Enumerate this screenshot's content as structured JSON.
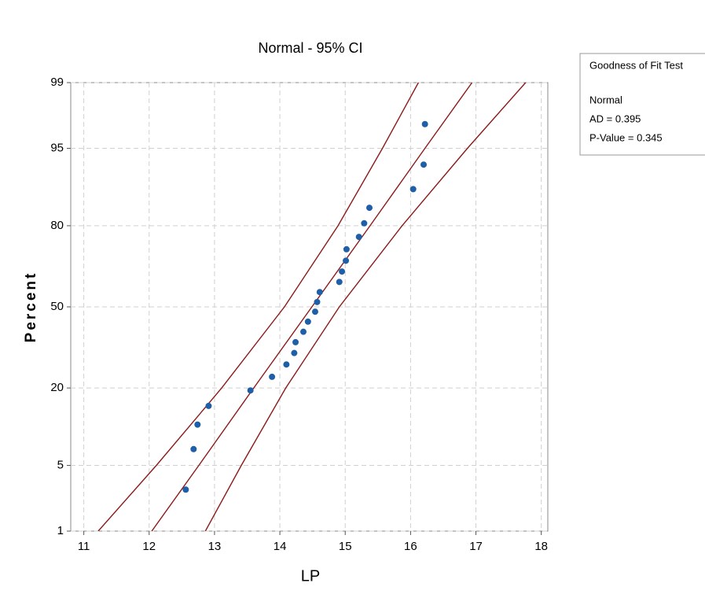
{
  "chart_data": {
    "type": "probability",
    "title": "Normal - 95% CI",
    "xlabel": "LP",
    "ylabel": "Percent",
    "yscale": "probability",
    "x": [
      12.56,
      12.68,
      12.74,
      12.91,
      13.55,
      13.88,
      14.1,
      14.22,
      14.24,
      14.36,
      14.43,
      14.54,
      14.57,
      14.61,
      14.91,
      14.95,
      15.01,
      15.02,
      15.21,
      15.29,
      15.37,
      16.04,
      16.2,
      16.22
    ],
    "values": [
      2.9,
      7.0,
      11.1,
      15.2,
      19.3,
      23.4,
      27.5,
      31.6,
      35.7,
      39.8,
      43.9,
      48.0,
      52.0,
      56.1,
      60.2,
      64.3,
      68.4,
      72.5,
      76.6,
      80.7,
      84.8,
      88.9,
      93.0,
      97.1
    ],
    "color": "#1f5fa8",
    "line_color": "#8b1a1a",
    "fit_line": {
      "x": [
        12.04,
        12.76,
        13.6,
        14.49,
        15.38,
        16.22,
        16.94
      ],
      "y": [
        1,
        5,
        20,
        50,
        80,
        95,
        99
      ]
    },
    "ci_lines": [
      {
        "x": [
          11.22,
          12.11,
          13.11,
          14.07,
          14.89,
          15.57,
          16.12
        ],
        "y": [
          1,
          5,
          20,
          50,
          80,
          95,
          99
        ]
      },
      {
        "x": [
          12.86,
          13.41,
          14.09,
          14.91,
          15.87,
          16.87,
          17.76
        ],
        "y": [
          1,
          5,
          20,
          50,
          80,
          95,
          99
        ]
      }
    ],
    "xlim": [
      10.8,
      18.1
    ],
    "xticks": [
      11,
      12,
      13,
      14,
      15,
      16,
      17,
      18
    ],
    "ylim": [
      1,
      99
    ],
    "yticks": [
      1,
      5,
      20,
      50,
      80,
      95,
      99
    ],
    "grid": true,
    "legend": {
      "title": "Goodness of Fit Test",
      "distribution": "Normal",
      "ad": "AD = 0.395",
      "p_value": "P-Value = 0.345"
    }
  }
}
